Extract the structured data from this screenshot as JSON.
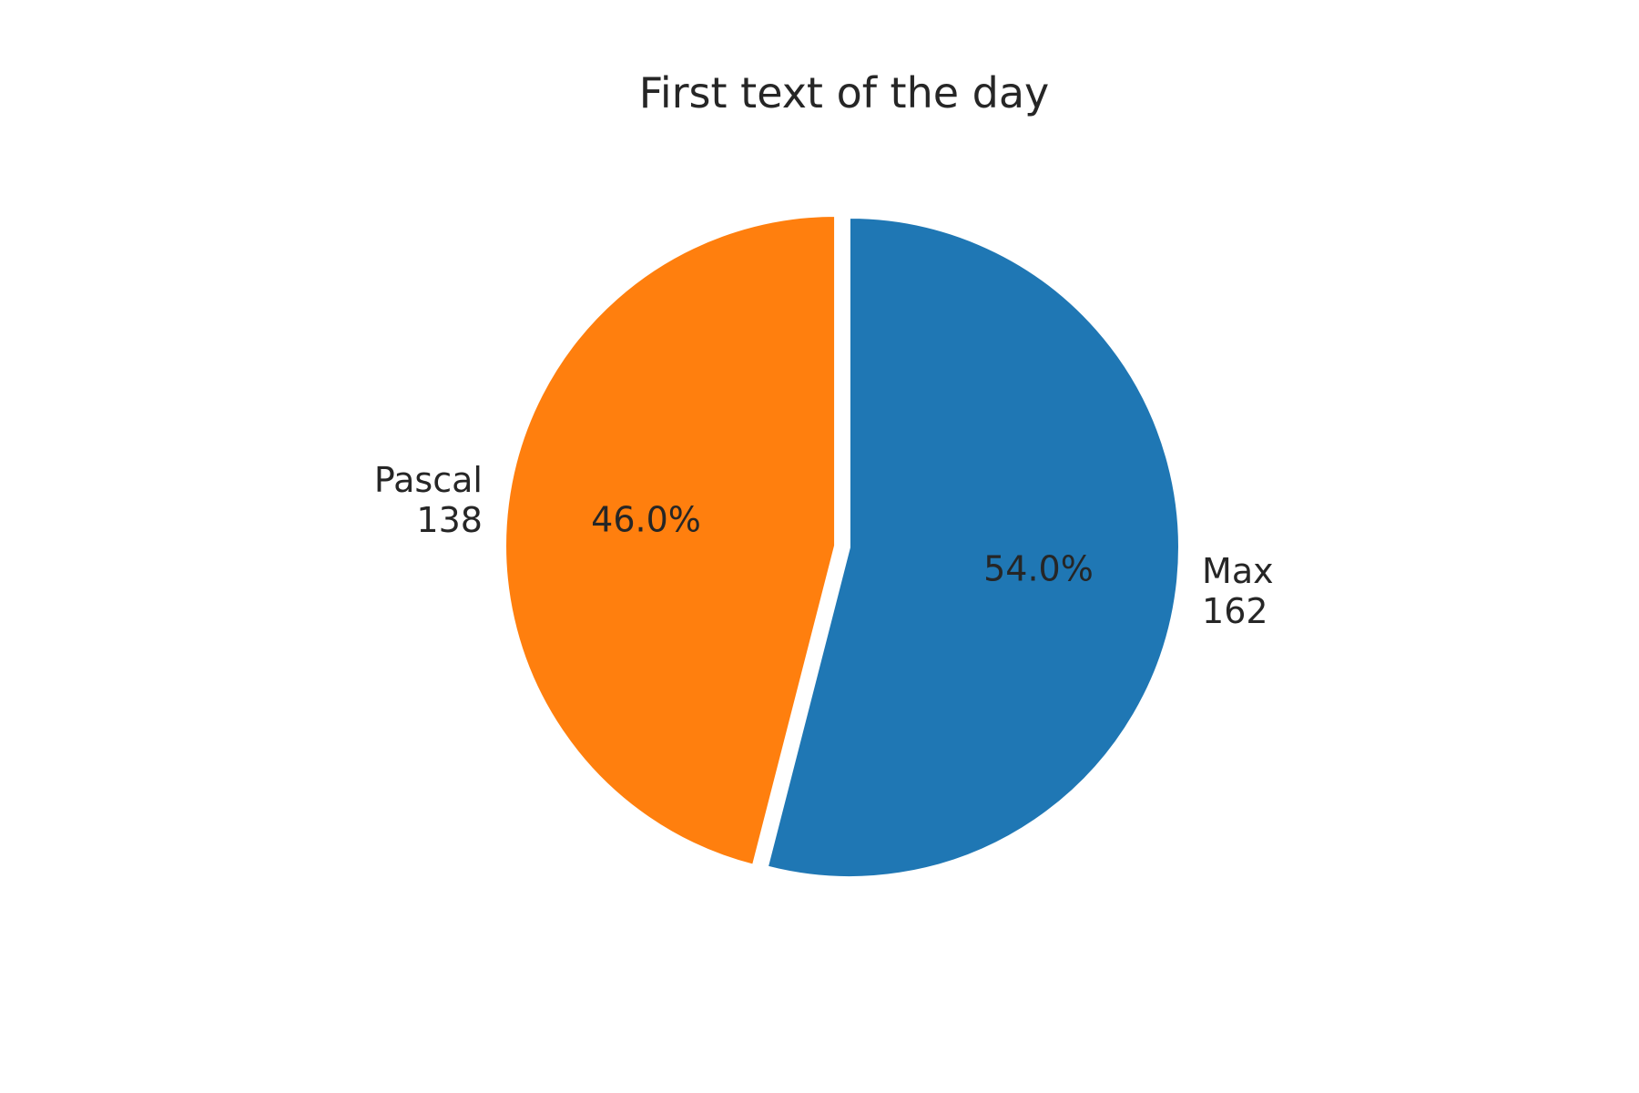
{
  "chart_data": {
    "type": "pie",
    "title": "First text of the day",
    "start_angle": 90,
    "direction": "clockwise",
    "slices": [
      {
        "name": "Max",
        "value": 162,
        "pct_label": "54.0%",
        "color": "#1f77b4"
      },
      {
        "name": "Pascal",
        "value": 138,
        "pct_label": "46.0%",
        "color": "#ff7f0e"
      }
    ]
  }
}
